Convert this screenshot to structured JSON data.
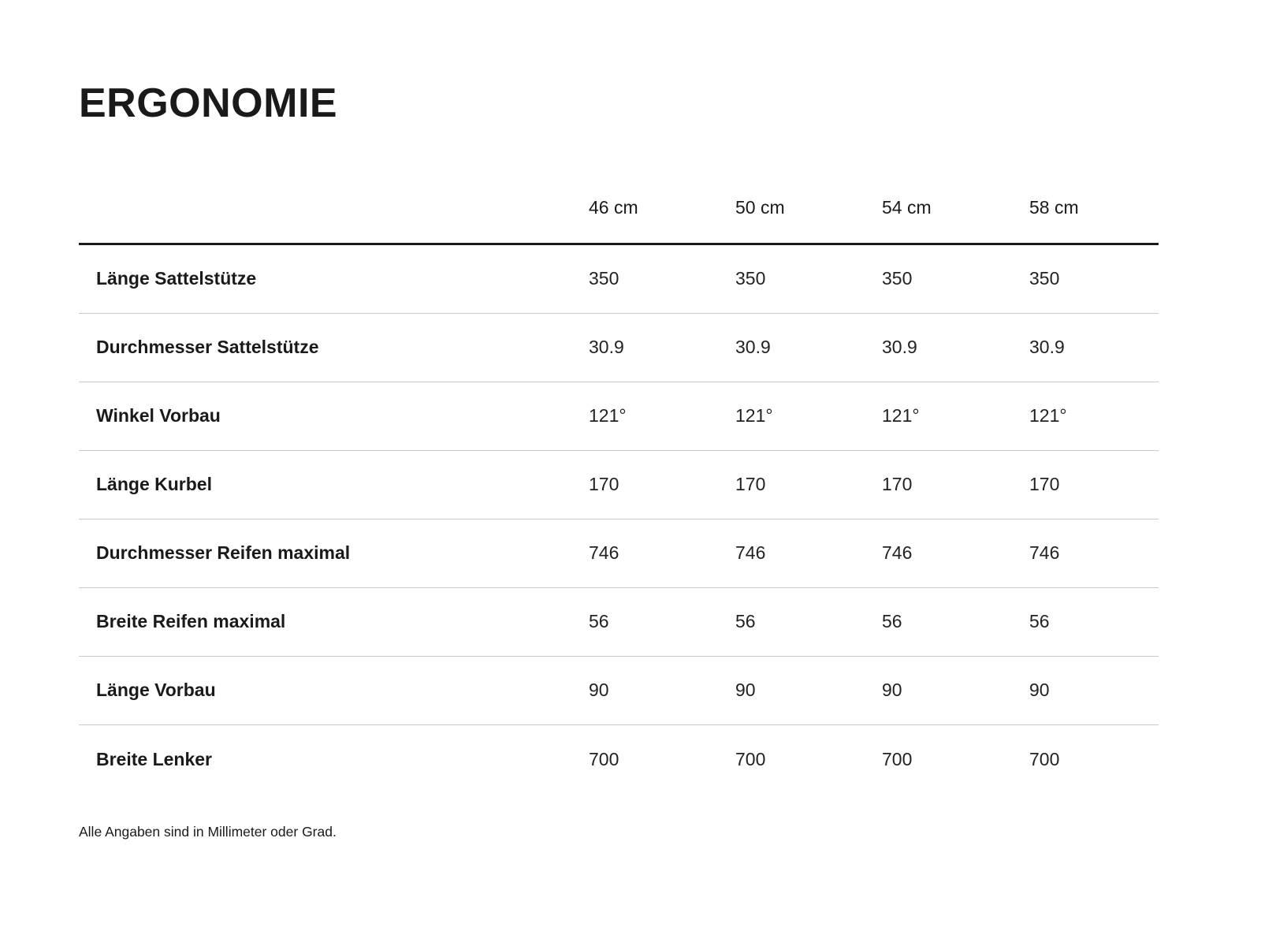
{
  "page": {
    "title": "ERGONOMIE",
    "footnote": "Alle Angaben sind in Millimeter oder Grad."
  },
  "table": {
    "columns": [
      "46 cm",
      "50 cm",
      "54 cm",
      "58 cm"
    ],
    "rows": [
      {
        "label": "Länge Sattelstütze",
        "values": [
          "350",
          "350",
          "350",
          "350"
        ]
      },
      {
        "label": "Durchmesser Sattelstütze",
        "values": [
          "30.9",
          "30.9",
          "30.9",
          "30.9"
        ]
      },
      {
        "label": "Winkel Vorbau",
        "values": [
          "121°",
          "121°",
          "121°",
          "121°"
        ]
      },
      {
        "label": "Länge Kurbel",
        "values": [
          "170",
          "170",
          "170",
          "170"
        ]
      },
      {
        "label": "Durchmesser Reifen maximal",
        "values": [
          "746",
          "746",
          "746",
          "746"
        ]
      },
      {
        "label": "Breite Reifen maximal",
        "values": [
          "56",
          "56",
          "56",
          "56"
        ]
      },
      {
        "label": "Länge Vorbau",
        "values": [
          "90",
          "90",
          "90",
          "90"
        ]
      },
      {
        "label": "Breite Lenker",
        "values": [
          "700",
          "700",
          "700",
          "700"
        ]
      }
    ]
  },
  "colors": {
    "background": "#ffffff",
    "text": "#1a1a1a",
    "value_text": "#222222",
    "header_rule": "#1a1a1a",
    "row_rule": "#c9c9c9"
  }
}
